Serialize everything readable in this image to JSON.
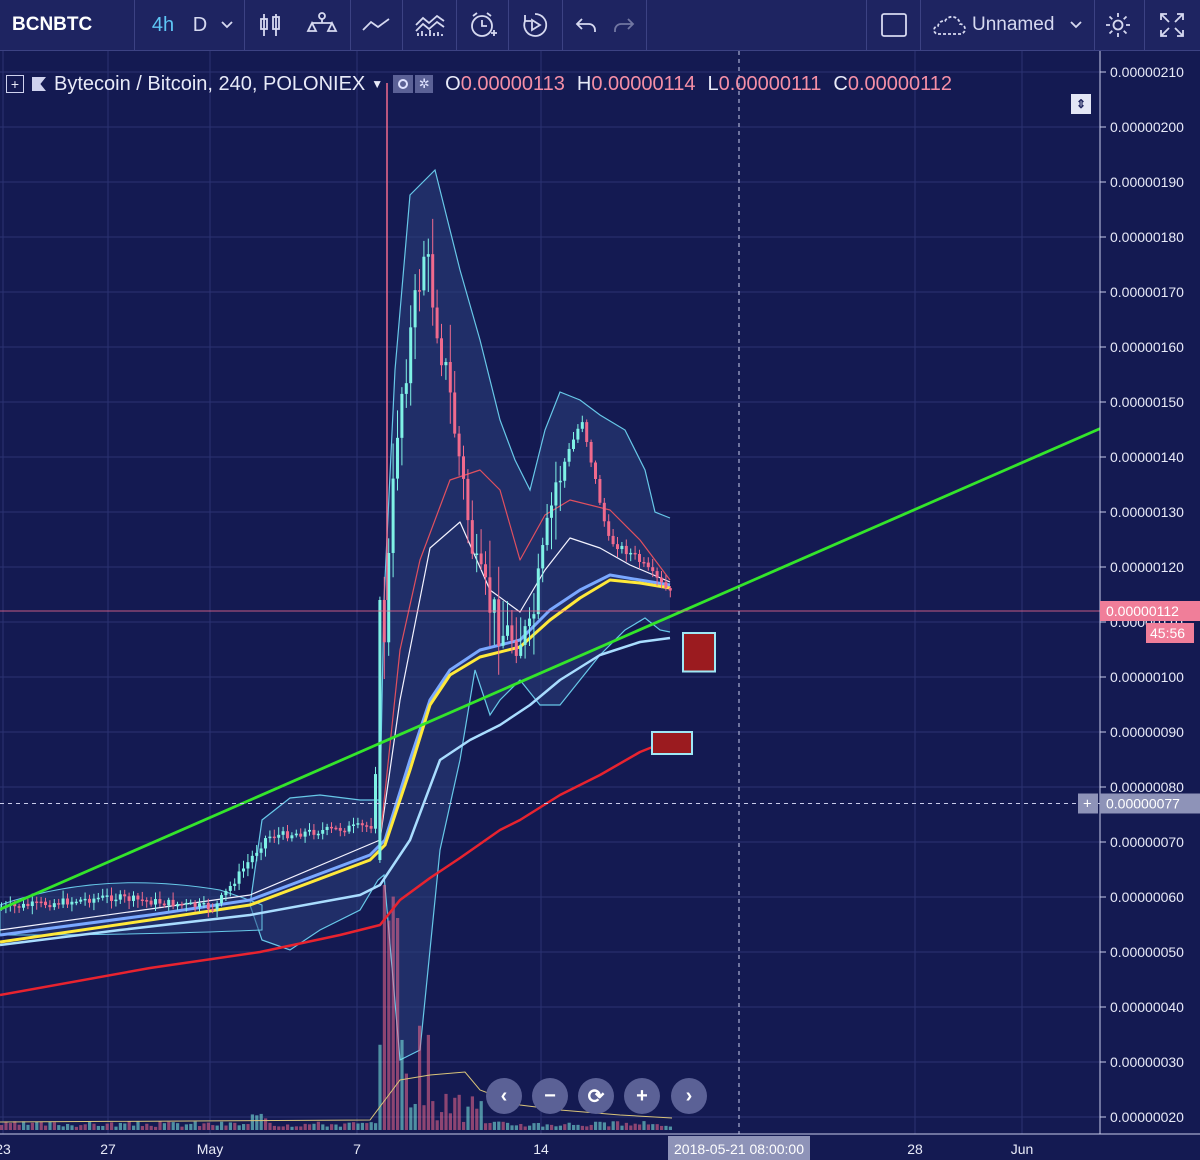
{
  "toolbar": {
    "symbol": "BCNBTC",
    "interval_active": "4h",
    "interval_alt": "D",
    "layout_name": "Unnamed",
    "icons": [
      "chevron-down-icon",
      "candles-icon",
      "indicators-icon",
      "line-icon",
      "compare-icon",
      "alert-icon",
      "replay-icon",
      "undo-icon",
      "redo-icon",
      "layout-square-icon",
      "cloud-icon",
      "gear-icon",
      "fullscreen-icon"
    ]
  },
  "legend": {
    "title": "Bytecoin / Bitcoin, 240, POLONIEX",
    "o_label": "O",
    "o_value": "0.00000113",
    "h_label": "H",
    "h_value": "0.00000114",
    "l_label": "L",
    "l_value": "0.00000111",
    "c_label": "C",
    "c_value": "0.00000112"
  },
  "price_axis": {
    "ticks": [
      "0.00000210",
      "0.00000200",
      "0.00000190",
      "0.00000180",
      "0.00000170",
      "0.00000160",
      "0.00000150",
      "0.00000140",
      "0.00000130",
      "0.00000120",
      "0.00000110",
      "0.00000100",
      "0.00000090",
      "0.00000080",
      "0.00000070",
      "0.00000060",
      "0.00000050",
      "0.00000040",
      "0.00000030",
      "0.00000020"
    ],
    "current_price": "0.00000112",
    "countdown": "45:56",
    "crosshair_price": "0.00000077"
  },
  "time_axis": {
    "ticks": [
      "23",
      "27",
      "May",
      "7",
      "14",
      "28",
      "Jun"
    ],
    "crosshair_time": "2018-05-21 08:00:00"
  },
  "zoom_controls": [
    "‹",
    "−",
    "⟳",
    "+",
    "›"
  ],
  "colors": {
    "background": "#141a52",
    "candle_up": "#7ff2e6",
    "candle_down": "#f06a8d",
    "trendline": "#34e52b",
    "ma_yellow": "#ffe93a",
    "ma_blue": "#7aa8ff",
    "ma_lightblue": "#a9ddff",
    "ma_red": "#e8232f",
    "band_fill": "#2a3f7a",
    "band_line": "#67c8e8",
    "marker_fill": "#9b1b1f",
    "marker_border": "#9fe8f5"
  },
  "chart_data": {
    "type": "candlestick",
    "symbol": "Bytecoin / Bitcoin",
    "exchange": "POLONIEX",
    "interval_minutes": 240,
    "ylim": [
      1.8e-07,
      2.15e-06
    ],
    "price_path": [
      {
        "date": "2018-04-23",
        "close": 5.8e-07
      },
      {
        "date": "2018-04-27",
        "close": 6e-07
      },
      {
        "date": "2018-05-01",
        "close": 5.8e-07
      },
      {
        "date": "2018-05-03",
        "close": 7.1e-07
      },
      {
        "date": "2018-05-07",
        "close": 7.3e-07
      },
      {
        "date": "2018-05-08",
        "close": 1.48e-06
      },
      {
        "date": "2018-05-09",
        "close": 1.78e-06
      },
      {
        "date": "2018-05-10",
        "close": 1.5e-06
      },
      {
        "date": "2018-05-11",
        "close": 1.18e-06
      },
      {
        "date": "2018-05-12",
        "close": 1.08e-06
      },
      {
        "date": "2018-05-13",
        "close": 1.07e-06
      },
      {
        "date": "2018-05-14",
        "close": 1.35e-06
      },
      {
        "date": "2018-05-15",
        "close": 1.47e-06
      },
      {
        "date": "2018-05-16",
        "close": 1.25e-06
      },
      {
        "date": "2018-05-17",
        "close": 1.22e-06
      },
      {
        "date": "2018-05-18",
        "close": 1.17e-06
      },
      {
        "date": "2018-05-19",
        "close": 1.12e-06
      }
    ],
    "spike_high": 2.08e-06,
    "current_price": 1.12e-06,
    "crosshair_price": 7.7e-07,
    "trendline": [
      {
        "date": "2018-04-23",
        "price": 5.8e-07
      },
      {
        "date": "2018-05-28",
        "price": 1.31e-06
      }
    ],
    "moving_averages": [
      {
        "color": "yellow",
        "end_price": 1.17e-06
      },
      {
        "color": "blue",
        "end_price": 1.18e-06
      },
      {
        "color": "lightblue",
        "end_price": 1.07e-06
      },
      {
        "color": "red",
        "end_price": 8.8e-07
      }
    ],
    "markers": [
      {
        "date": "2018-05-20",
        "low": 1.01e-06,
        "high": 1.08e-06
      },
      {
        "date": "2018-05-19",
        "low": 8.6e-07,
        "high": 9e-07
      }
    ]
  }
}
